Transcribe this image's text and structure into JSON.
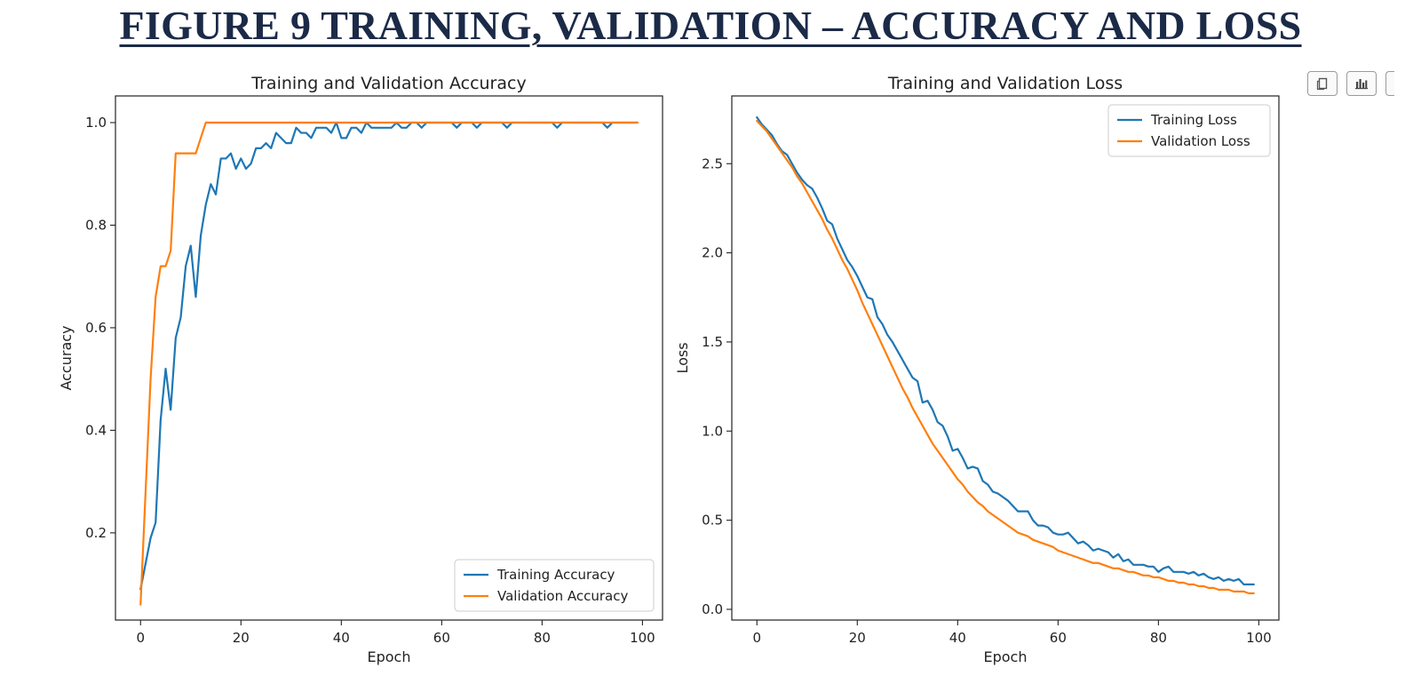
{
  "heading": "FIGURE 9 TRAINING, VALIDATION – ACCURACY AND LOSS",
  "toolbar": {
    "buttons": [
      {
        "name": "copy-button",
        "icon": "copy-icon"
      },
      {
        "name": "chart-button",
        "icon": "bar-chart-icon"
      }
    ]
  },
  "colors": {
    "training": "#1f77b4",
    "validation": "#ff7f0e",
    "heading": "#1b2a47"
  },
  "chart_data": [
    {
      "type": "line",
      "title": "Training and Validation Accuracy",
      "xlabel": "Epoch",
      "ylabel": "Accuracy",
      "xlim": [
        -5,
        104
      ],
      "ylim": [
        0.03,
        1.052
      ],
      "xticks": [
        0,
        20,
        40,
        60,
        80,
        100
      ],
      "yticks": [
        0.2,
        0.4,
        0.6,
        0.8,
        1.0
      ],
      "ytick_labels": [
        "0.2",
        "0.4",
        "0.6",
        "0.8",
        "1.0"
      ],
      "grid": false,
      "legend_position": "lower-right",
      "x": [
        0,
        1,
        2,
        3,
        4,
        5,
        6,
        7,
        8,
        9,
        10,
        11,
        12,
        13,
        14,
        15,
        16,
        17,
        18,
        19,
        20,
        21,
        22,
        23,
        24,
        25,
        26,
        27,
        28,
        29,
        30,
        31,
        32,
        33,
        34,
        35,
        36,
        37,
        38,
        39,
        40,
        41,
        42,
        43,
        44,
        45,
        46,
        47,
        48,
        49,
        50,
        51,
        52,
        53,
        54,
        55,
        56,
        57,
        58,
        59,
        60,
        61,
        62,
        63,
        64,
        65,
        66,
        67,
        68,
        69,
        70,
        71,
        72,
        73,
        74,
        75,
        76,
        77,
        78,
        79,
        80,
        81,
        82,
        83,
        84,
        85,
        86,
        87,
        88,
        89,
        90,
        91,
        92,
        93,
        94,
        95,
        96,
        97,
        98,
        99
      ],
      "series": [
        {
          "name": "Training Accuracy",
          "values": [
            0.09,
            0.14,
            0.19,
            0.22,
            0.42,
            0.52,
            0.44,
            0.58,
            0.62,
            0.72,
            0.76,
            0.66,
            0.78,
            0.84,
            0.88,
            0.86,
            0.93,
            0.93,
            0.94,
            0.91,
            0.93,
            0.91,
            0.92,
            0.95,
            0.95,
            0.96,
            0.95,
            0.98,
            0.97,
            0.96,
            0.96,
            0.99,
            0.98,
            0.98,
            0.97,
            0.99,
            0.99,
            0.99,
            0.98,
            1.0,
            0.97,
            0.97,
            0.99,
            0.99,
            0.98,
            1.0,
            0.99,
            0.99,
            0.99,
            0.99,
            0.99,
            1.0,
            0.99,
            0.99,
            1.0,
            1.0,
            0.99,
            1.0,
            1.0,
            1.0,
            1.0,
            1.0,
            1.0,
            0.99,
            1.0,
            1.0,
            1.0,
            0.99,
            1.0,
            1.0,
            1.0,
            1.0,
            1.0,
            0.99,
            1.0,
            1.0,
            1.0,
            1.0,
            1.0,
            1.0,
            1.0,
            1.0,
            1.0,
            0.99,
            1.0,
            1.0,
            1.0,
            1.0,
            1.0,
            1.0,
            1.0,
            1.0,
            1.0,
            0.99,
            1.0,
            1.0,
            1.0,
            1.0,
            1.0,
            1.0
          ]
        },
        {
          "name": "Validation Accuracy",
          "values": [
            0.06,
            0.28,
            0.5,
            0.66,
            0.72,
            0.72,
            0.75,
            0.94,
            0.94,
            0.94,
            0.94,
            0.94,
            0.97,
            1.0,
            1.0,
            1.0,
            1.0,
            1.0,
            1.0,
            1.0,
            1.0,
            1.0,
            1.0,
            1.0,
            1.0,
            1.0,
            1.0,
            1.0,
            1.0,
            1.0,
            1.0,
            1.0,
            1.0,
            1.0,
            1.0,
            1.0,
            1.0,
            1.0,
            1.0,
            1.0,
            1.0,
            1.0,
            1.0,
            1.0,
            1.0,
            1.0,
            1.0,
            1.0,
            1.0,
            1.0,
            1.0,
            1.0,
            1.0,
            1.0,
            1.0,
            1.0,
            1.0,
            1.0,
            1.0,
            1.0,
            1.0,
            1.0,
            1.0,
            1.0,
            1.0,
            1.0,
            1.0,
            1.0,
            1.0,
            1.0,
            1.0,
            1.0,
            1.0,
            1.0,
            1.0,
            1.0,
            1.0,
            1.0,
            1.0,
            1.0,
            1.0,
            1.0,
            1.0,
            1.0,
            1.0,
            1.0,
            1.0,
            1.0,
            1.0,
            1.0,
            1.0,
            1.0,
            1.0,
            1.0,
            1.0,
            1.0,
            1.0,
            1.0,
            1.0,
            1.0
          ]
        }
      ]
    },
    {
      "type": "line",
      "title": "Training and Validation Loss",
      "xlabel": "Epoch",
      "ylabel": "Loss",
      "xlim": [
        -5,
        104
      ],
      "ylim": [
        -0.06,
        2.88
      ],
      "xticks": [
        0,
        20,
        40,
        60,
        80,
        100
      ],
      "yticks": [
        0.0,
        0.5,
        1.0,
        1.5,
        2.0,
        2.5
      ],
      "ytick_labels": [
        "0.0",
        "0.5",
        "1.0",
        "1.5",
        "2.0",
        "2.5"
      ],
      "grid": false,
      "legend_position": "upper-right",
      "x": [
        0,
        1,
        2,
        3,
        4,
        5,
        6,
        7,
        8,
        9,
        10,
        11,
        12,
        13,
        14,
        15,
        16,
        17,
        18,
        19,
        20,
        21,
        22,
        23,
        24,
        25,
        26,
        27,
        28,
        29,
        30,
        31,
        32,
        33,
        34,
        35,
        36,
        37,
        38,
        39,
        40,
        41,
        42,
        43,
        44,
        45,
        46,
        47,
        48,
        49,
        50,
        51,
        52,
        53,
        54,
        55,
        56,
        57,
        58,
        59,
        60,
        61,
        62,
        63,
        64,
        65,
        66,
        67,
        68,
        69,
        70,
        71,
        72,
        73,
        74,
        75,
        76,
        77,
        78,
        79,
        80,
        81,
        82,
        83,
        84,
        85,
        86,
        87,
        88,
        89,
        90,
        91,
        92,
        93,
        94,
        95,
        96,
        97,
        98,
        99
      ],
      "series": [
        {
          "name": "Training Loss",
          "values": [
            2.76,
            2.72,
            2.69,
            2.66,
            2.61,
            2.57,
            2.55,
            2.5,
            2.45,
            2.41,
            2.38,
            2.36,
            2.31,
            2.25,
            2.18,
            2.16,
            2.08,
            2.02,
            1.96,
            1.92,
            1.87,
            1.81,
            1.75,
            1.74,
            1.64,
            1.6,
            1.54,
            1.5,
            1.45,
            1.4,
            1.35,
            1.3,
            1.28,
            1.16,
            1.17,
            1.12,
            1.05,
            1.03,
            0.97,
            0.89,
            0.9,
            0.85,
            0.79,
            0.8,
            0.79,
            0.72,
            0.7,
            0.66,
            0.65,
            0.63,
            0.61,
            0.58,
            0.55,
            0.55,
            0.55,
            0.5,
            0.47,
            0.47,
            0.46,
            0.43,
            0.42,
            0.42,
            0.43,
            0.4,
            0.37,
            0.38,
            0.36,
            0.33,
            0.34,
            0.33,
            0.32,
            0.29,
            0.31,
            0.27,
            0.28,
            0.25,
            0.25,
            0.25,
            0.24,
            0.24,
            0.21,
            0.23,
            0.24,
            0.21,
            0.21,
            0.21,
            0.2,
            0.21,
            0.19,
            0.2,
            0.18,
            0.17,
            0.18,
            0.16,
            0.17,
            0.16,
            0.17,
            0.14,
            0.14,
            0.14
          ]
        },
        {
          "name": "Validation Loss",
          "values": [
            2.74,
            2.71,
            2.68,
            2.64,
            2.6,
            2.56,
            2.52,
            2.48,
            2.43,
            2.39,
            2.34,
            2.29,
            2.24,
            2.19,
            2.13,
            2.08,
            2.02,
            1.96,
            1.91,
            1.85,
            1.79,
            1.72,
            1.66,
            1.6,
            1.54,
            1.48,
            1.42,
            1.36,
            1.3,
            1.24,
            1.19,
            1.13,
            1.08,
            1.03,
            0.98,
            0.93,
            0.89,
            0.85,
            0.81,
            0.77,
            0.73,
            0.7,
            0.66,
            0.63,
            0.6,
            0.58,
            0.55,
            0.53,
            0.51,
            0.49,
            0.47,
            0.45,
            0.43,
            0.42,
            0.41,
            0.39,
            0.38,
            0.37,
            0.36,
            0.35,
            0.33,
            0.32,
            0.31,
            0.3,
            0.29,
            0.28,
            0.27,
            0.26,
            0.26,
            0.25,
            0.24,
            0.23,
            0.23,
            0.22,
            0.21,
            0.21,
            0.2,
            0.19,
            0.19,
            0.18,
            0.18,
            0.17,
            0.16,
            0.16,
            0.15,
            0.15,
            0.14,
            0.14,
            0.13,
            0.13,
            0.12,
            0.12,
            0.11,
            0.11,
            0.11,
            0.1,
            0.1,
            0.1,
            0.09,
            0.09
          ]
        }
      ]
    }
  ]
}
